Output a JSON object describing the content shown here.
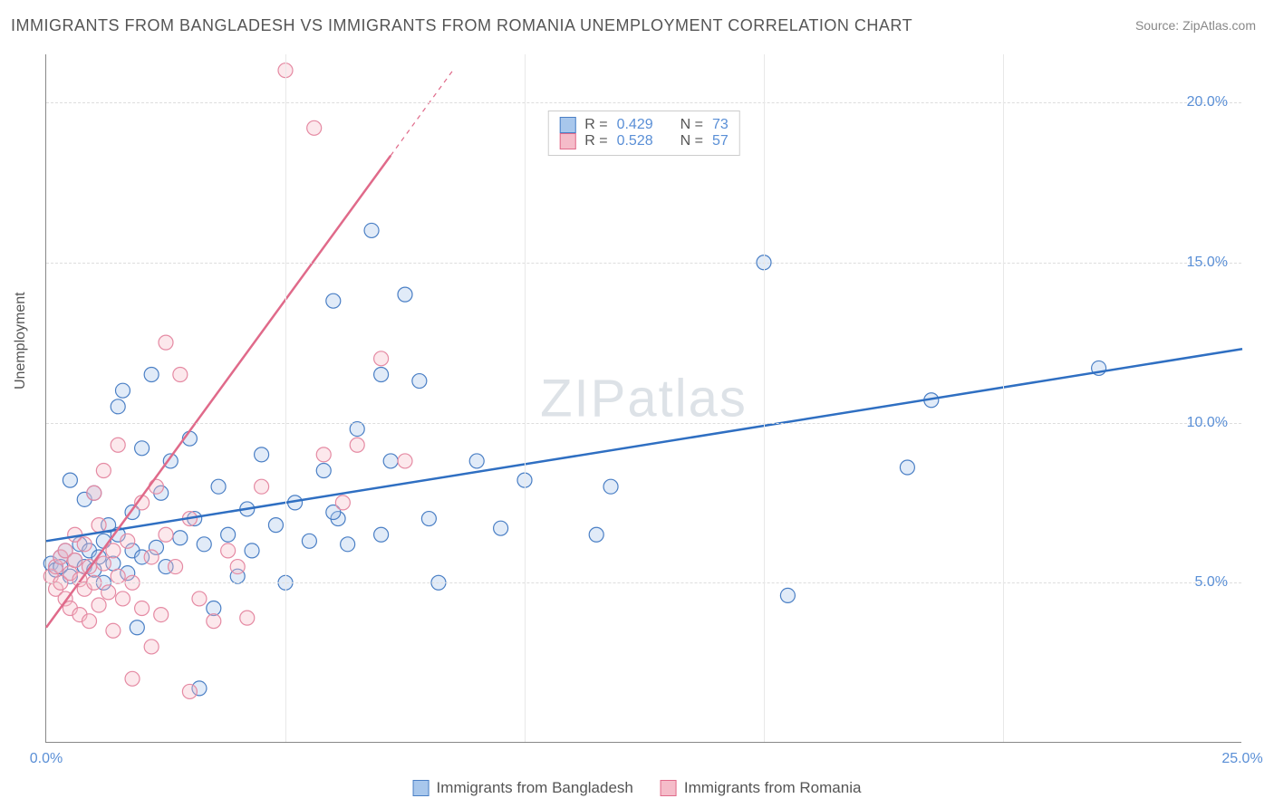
{
  "title": "IMMIGRANTS FROM BANGLADESH VS IMMIGRANTS FROM ROMANIA UNEMPLOYMENT CORRELATION CHART",
  "source": "Source: ZipAtlas.com",
  "ylabel": "Unemployment",
  "watermark": "ZIPatlas",
  "chart": {
    "type": "scatter",
    "background_color": "#ffffff",
    "grid_color": "#dddddd",
    "axis_color": "#888888",
    "xlim": [
      0,
      25
    ],
    "ylim": [
      0,
      21.5
    ],
    "xticks": [
      0,
      5,
      10,
      15,
      20,
      25
    ],
    "xtick_labels": [
      "0.0%",
      "",
      "",
      "",
      "",
      "25.0%"
    ],
    "yticks": [
      5,
      10,
      15,
      20
    ],
    "ytick_labels": [
      "5.0%",
      "10.0%",
      "15.0%",
      "20.0%"
    ],
    "tick_label_color": "#5a8fd6",
    "tick_label_fontsize": 16,
    "marker_radius": 8,
    "marker_fill_opacity": 0.35,
    "marker_stroke_width": 1.2,
    "trendline_width": 2.5
  },
  "stats_legend": {
    "rows": [
      {
        "swatch_fill": "#a8c7ec",
        "swatch_border": "#4a7fc5",
        "r_label": "R =",
        "r_value": "0.429",
        "n_label": "N =",
        "n_value": "73"
      },
      {
        "swatch_fill": "#f5bcc9",
        "swatch_border": "#e06a8a",
        "r_label": "R =",
        "r_value": "0.528",
        "n_label": "N =",
        "n_value": "57"
      }
    ]
  },
  "bottom_legend": {
    "items": [
      {
        "swatch_fill": "#a8c7ec",
        "swatch_border": "#4a7fc5",
        "label": "Immigrants from Bangladesh"
      },
      {
        "swatch_fill": "#f5bcc9",
        "swatch_border": "#e06a8a",
        "label": "Immigrants from Romania"
      }
    ]
  },
  "series": [
    {
      "name": "Immigrants from Bangladesh",
      "color_fill": "#a8c7ec",
      "color_stroke": "#4a7fc5",
      "trendline_color": "#2f6fc2",
      "trendline": {
        "x1": 0,
        "y1": 6.3,
        "x2": 25,
        "y2": 12.3
      },
      "points": [
        [
          0.1,
          5.6
        ],
        [
          0.2,
          5.4
        ],
        [
          0.3,
          5.8
        ],
        [
          0.3,
          5.5
        ],
        [
          0.4,
          6.0
        ],
        [
          0.5,
          5.2
        ],
        [
          0.5,
          8.2
        ],
        [
          0.6,
          5.7
        ],
        [
          0.7,
          6.2
        ],
        [
          0.8,
          5.5
        ],
        [
          0.8,
          7.6
        ],
        [
          0.9,
          6.0
        ],
        [
          1.0,
          5.4
        ],
        [
          1.0,
          7.8
        ],
        [
          1.1,
          5.8
        ],
        [
          1.2,
          6.3
        ],
        [
          1.2,
          5.0
        ],
        [
          1.3,
          6.8
        ],
        [
          1.4,
          5.6
        ],
        [
          1.5,
          10.5
        ],
        [
          1.5,
          6.5
        ],
        [
          1.6,
          11.0
        ],
        [
          1.7,
          5.3
        ],
        [
          1.8,
          6.0
        ],
        [
          1.8,
          7.2
        ],
        [
          1.9,
          3.6
        ],
        [
          2.0,
          5.8
        ],
        [
          2.0,
          9.2
        ],
        [
          2.2,
          11.5
        ],
        [
          2.3,
          6.1
        ],
        [
          2.4,
          7.8
        ],
        [
          2.5,
          5.5
        ],
        [
          2.6,
          8.8
        ],
        [
          2.8,
          6.4
        ],
        [
          3.0,
          9.5
        ],
        [
          3.1,
          7.0
        ],
        [
          3.2,
          1.7
        ],
        [
          3.3,
          6.2
        ],
        [
          3.5,
          4.2
        ],
        [
          3.6,
          8.0
        ],
        [
          3.8,
          6.5
        ],
        [
          4.0,
          5.2
        ],
        [
          4.2,
          7.3
        ],
        [
          4.3,
          6.0
        ],
        [
          4.5,
          9.0
        ],
        [
          4.8,
          6.8
        ],
        [
          5.0,
          5.0
        ],
        [
          5.2,
          7.5
        ],
        [
          5.5,
          6.3
        ],
        [
          5.8,
          8.5
        ],
        [
          6.0,
          13.8
        ],
        [
          6.1,
          7.0
        ],
        [
          6.3,
          6.2
        ],
        [
          6.5,
          9.8
        ],
        [
          6.8,
          16.0
        ],
        [
          7.0,
          6.5
        ],
        [
          7.2,
          8.8
        ],
        [
          7.5,
          14.0
        ],
        [
          7.8,
          11.3
        ],
        [
          8.0,
          7.0
        ],
        [
          8.2,
          5.0
        ],
        [
          9.0,
          8.8
        ],
        [
          9.5,
          6.7
        ],
        [
          10.0,
          8.2
        ],
        [
          11.5,
          6.5
        ],
        [
          11.8,
          8.0
        ],
        [
          15.0,
          15.0
        ],
        [
          15.5,
          4.6
        ],
        [
          18.0,
          8.6
        ],
        [
          18.5,
          10.7
        ],
        [
          22.0,
          11.7
        ],
        [
          7.0,
          11.5
        ],
        [
          6.0,
          7.2
        ]
      ]
    },
    {
      "name": "Immigrants from Romania",
      "color_fill": "#f5bcc9",
      "color_stroke": "#e58aa3",
      "trendline_color": "#e06a8a",
      "trendline": {
        "x1": 0,
        "y1": 3.6,
        "x2": 8.5,
        "y2": 21.0
      },
      "trendline_solid_end_x": 7.2,
      "points": [
        [
          0.1,
          5.2
        ],
        [
          0.2,
          4.8
        ],
        [
          0.2,
          5.5
        ],
        [
          0.3,
          5.0
        ],
        [
          0.3,
          5.8
        ],
        [
          0.4,
          4.5
        ],
        [
          0.4,
          6.0
        ],
        [
          0.5,
          5.3
        ],
        [
          0.5,
          4.2
        ],
        [
          0.6,
          5.7
        ],
        [
          0.6,
          6.5
        ],
        [
          0.7,
          4.0
        ],
        [
          0.7,
          5.1
        ],
        [
          0.8,
          6.2
        ],
        [
          0.8,
          4.8
        ],
        [
          0.9,
          5.5
        ],
        [
          0.9,
          3.8
        ],
        [
          1.0,
          7.8
        ],
        [
          1.0,
          5.0
        ],
        [
          1.1,
          6.8
        ],
        [
          1.1,
          4.3
        ],
        [
          1.2,
          5.6
        ],
        [
          1.2,
          8.5
        ],
        [
          1.3,
          4.7
        ],
        [
          1.4,
          6.0
        ],
        [
          1.4,
          3.5
        ],
        [
          1.5,
          9.3
        ],
        [
          1.5,
          5.2
        ],
        [
          1.6,
          4.5
        ],
        [
          1.7,
          6.3
        ],
        [
          1.8,
          5.0
        ],
        [
          1.8,
          2.0
        ],
        [
          2.0,
          7.5
        ],
        [
          2.0,
          4.2
        ],
        [
          2.2,
          3.0
        ],
        [
          2.2,
          5.8
        ],
        [
          2.3,
          8.0
        ],
        [
          2.4,
          4.0
        ],
        [
          2.5,
          6.5
        ],
        [
          2.5,
          12.5
        ],
        [
          2.7,
          5.5
        ],
        [
          2.8,
          11.5
        ],
        [
          3.0,
          1.6
        ],
        [
          3.0,
          7.0
        ],
        [
          3.2,
          4.5
        ],
        [
          3.5,
          3.8
        ],
        [
          3.8,
          6.0
        ],
        [
          4.0,
          5.5
        ],
        [
          4.2,
          3.9
        ],
        [
          4.5,
          8.0
        ],
        [
          5.0,
          21.0
        ],
        [
          5.6,
          19.2
        ],
        [
          5.8,
          9.0
        ],
        [
          6.2,
          7.5
        ],
        [
          6.5,
          9.3
        ],
        [
          7.0,
          12.0
        ],
        [
          7.5,
          8.8
        ]
      ]
    }
  ]
}
